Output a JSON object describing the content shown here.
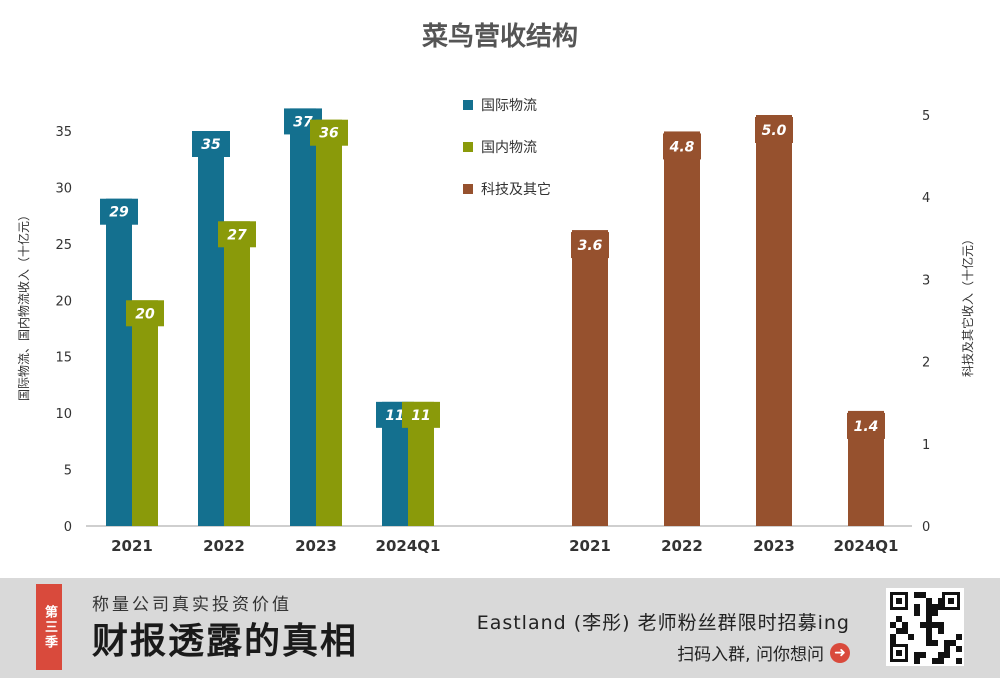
{
  "chart_data": [
    {
      "type": "bar",
      "title": "菜鸟营收结构",
      "categories": [
        "2021",
        "2022",
        "2023",
        "2024Q1"
      ],
      "ylabel": "国际物流、国内物流收入（十亿元）",
      "ylim": [
        0,
        35
      ],
      "yticks": [
        0,
        5,
        10,
        15,
        20,
        25,
        30,
        35
      ],
      "series": [
        {
          "name": "国际物流",
          "values": [
            29,
            35,
            37,
            11
          ],
          "color": "#14708f"
        },
        {
          "name": "国内物流",
          "values": [
            20,
            27,
            36,
            11
          ],
          "color": "#8a9a0a"
        }
      ],
      "legend": "top-center"
    },
    {
      "type": "bar",
      "categories": [
        "2021",
        "2022",
        "2023",
        "2024Q1"
      ],
      "ylabel": "科技及其它收入（十亿元）",
      "ylim": [
        0,
        5
      ],
      "yticks": [
        0,
        1,
        2,
        3,
        4,
        5
      ],
      "series": [
        {
          "name": "科技及其它",
          "values": [
            3.6,
            4.8,
            5.0,
            1.4
          ],
          "color": "#96512e"
        }
      ],
      "value_labels": [
        "3.6",
        "4.8",
        "5.0",
        "1.4"
      ]
    }
  ],
  "banner": {
    "badge": "第三季",
    "subtitle": "称量公司真实投资价值",
    "headline": "财报透露的真相",
    "promo": "Eastland (李彤) 老师粉丝群限时招募ing",
    "cta": "扫码入群, 问你想问",
    "accent": "#d94a3c"
  }
}
